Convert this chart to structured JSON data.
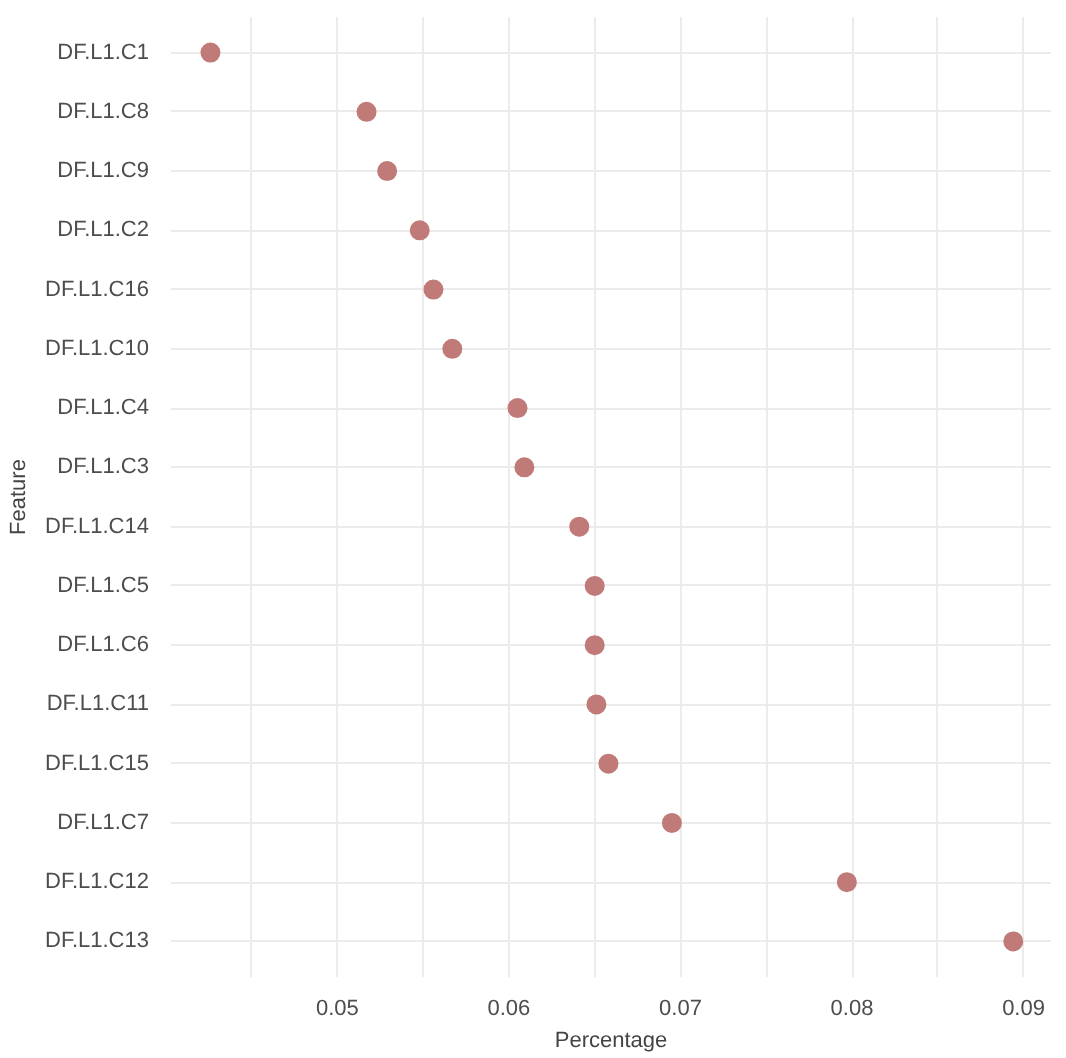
{
  "chart_data": {
    "type": "scatter",
    "orientation": "horizontal",
    "xlabel": "Percentage",
    "ylabel": "Feature",
    "categories": [
      "DF.L1.C1",
      "DF.L1.C8",
      "DF.L1.C9",
      "DF.L1.C2",
      "DF.L1.C16",
      "DF.L1.C10",
      "DF.L1.C4",
      "DF.L1.C3",
      "DF.L1.C14",
      "DF.L1.C5",
      "DF.L1.C6",
      "DF.L1.C11",
      "DF.L1.C15",
      "DF.L1.C7",
      "DF.L1.C12",
      "DF.L1.C13"
    ],
    "values": [
      0.0426,
      0.0517,
      0.0529,
      0.0548,
      0.0556,
      0.0567,
      0.0605,
      0.0609,
      0.0641,
      0.065,
      0.065,
      0.0651,
      0.0658,
      0.0695,
      0.0797,
      0.0894
    ],
    "color": "#c07a78",
    "marker": "circle",
    "grid": true,
    "xlim": [
      0.0403,
      0.0916
    ],
    "xticks": [
      {
        "value": 0.045,
        "label": null
      },
      0.05,
      {
        "value": 0.055,
        "label": null
      },
      0.06,
      {
        "value": 0.065,
        "label": null
      },
      0.07,
      {
        "value": 0.075,
        "label": null
      },
      0.08,
      {
        "value": 0.085,
        "label": null
      },
      0.09
    ]
  }
}
